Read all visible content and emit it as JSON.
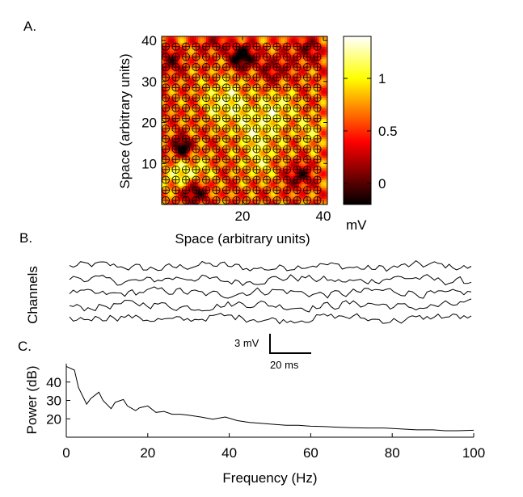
{
  "panels": {
    "a": {
      "label": "A.",
      "xlabel": "Space (arbitrary units)",
      "ylabel": "Space (arbitrary units)",
      "xticks": [
        20,
        40
      ],
      "yticks": [
        10,
        20,
        30,
        40
      ],
      "colorbar_ticks": [
        0,
        0.5,
        1
      ],
      "colorbar_unit": "mV",
      "colormap": "hot",
      "marker": "circled-plus-electrode",
      "marker_note": "electrode marker"
    },
    "b": {
      "label": "B.",
      "ylabel": "Channels",
      "scale_v": "3 mV",
      "scale_t": "20 ms"
    },
    "c": {
      "label": "C.",
      "xlabel": "Frequency (Hz)",
      "ylabel": "Power (dB)"
    }
  },
  "chart_data": [
    {
      "type": "heatmap",
      "xlabel": "Space (arbitrary units)",
      "ylabel": "Space (arbitrary units)",
      "xlim": [
        0,
        41
      ],
      "ylim": [
        0,
        41
      ],
      "clim": [
        -0.2,
        1.4
      ],
      "colorbar_label": "mV",
      "electrode_grid": {
        "x_start": 1,
        "y_start": 1,
        "spacing": 2.5,
        "count_x": 16,
        "count_y": 16
      },
      "blobs": [
        {
          "x": 20,
          "y": 36,
          "amp": -1.0,
          "sigma": 2.0
        },
        {
          "x": 5,
          "y": 14,
          "amp": -0.9,
          "sigma": 1.7
        },
        {
          "x": 8,
          "y": 3,
          "amp": -0.8,
          "sigma": 2.0
        },
        {
          "x": 34,
          "y": 7,
          "amp": -0.6,
          "sigma": 2.0
        },
        {
          "x": 2,
          "y": 35,
          "amp": -0.45,
          "sigma": 2.2
        },
        {
          "x": 28,
          "y": 33,
          "amp": -0.4,
          "sigma": 2.5
        },
        {
          "x": 36,
          "y": 38,
          "amp": -0.4,
          "sigma": 2.5
        },
        {
          "x": 13,
          "y": 40,
          "amp": -0.35,
          "sigma": 2.2
        },
        {
          "x": 16,
          "y": 25,
          "amp": 0.5,
          "sigma": 4.0
        },
        {
          "x": 24,
          "y": 18,
          "amp": 0.45,
          "sigma": 4.0
        },
        {
          "x": 29,
          "y": 24,
          "amp": 0.4,
          "sigma": 3.0
        },
        {
          "x": 8,
          "y": 8,
          "amp": 0.4,
          "sigma": 3.0
        },
        {
          "x": 3,
          "y": 7,
          "amp": 0.35,
          "sigma": 2.5
        },
        {
          "x": 24,
          "y": 10,
          "amp": 0.3,
          "sigma": 3.0
        },
        {
          "x": 37,
          "y": 18,
          "amp": 0.3,
          "sigma": 3.0
        }
      ]
    },
    {
      "type": "line",
      "title": "",
      "ylabel": "Channels",
      "series_count": 5,
      "channel_offsets_mV": [
        0,
        -2,
        -4,
        -6,
        -8
      ],
      "samples_per_trace": 110,
      "noise_amplitude_mV": 0.55,
      "scale_bar": {
        "voltage": "3 mV",
        "time": "20 ms"
      }
    },
    {
      "type": "line",
      "xlabel": "Frequency (Hz)",
      "ylabel": "Power (dB)",
      "xlim": [
        0,
        100
      ],
      "ylim": [
        10,
        50
      ],
      "xticks": [
        0,
        20,
        40,
        60,
        80,
        100
      ],
      "yticks": [
        20,
        30,
        40
      ],
      "x": [
        0,
        2,
        3,
        5,
        6,
        8,
        9,
        11,
        12,
        14,
        15,
        17,
        18,
        20,
        22,
        24,
        26,
        28,
        30,
        33,
        36,
        39,
        42,
        45,
        48,
        51,
        54,
        57,
        60,
        63,
        66,
        70,
        74,
        78,
        82,
        86,
        90,
        93,
        96,
        100
      ],
      "values": [
        48.5,
        46.5,
        37,
        28,
        31,
        34.5,
        30,
        25.5,
        29,
        30.5,
        27,
        24.5,
        26,
        27,
        23.5,
        24,
        22.5,
        22.5,
        22,
        21,
        19.8,
        21,
        19,
        18,
        17.5,
        17,
        16.5,
        16.5,
        16,
        15.8,
        15.5,
        15.2,
        15,
        15,
        14.5,
        14,
        14,
        13.5,
        13.5,
        13.8
      ]
    }
  ]
}
